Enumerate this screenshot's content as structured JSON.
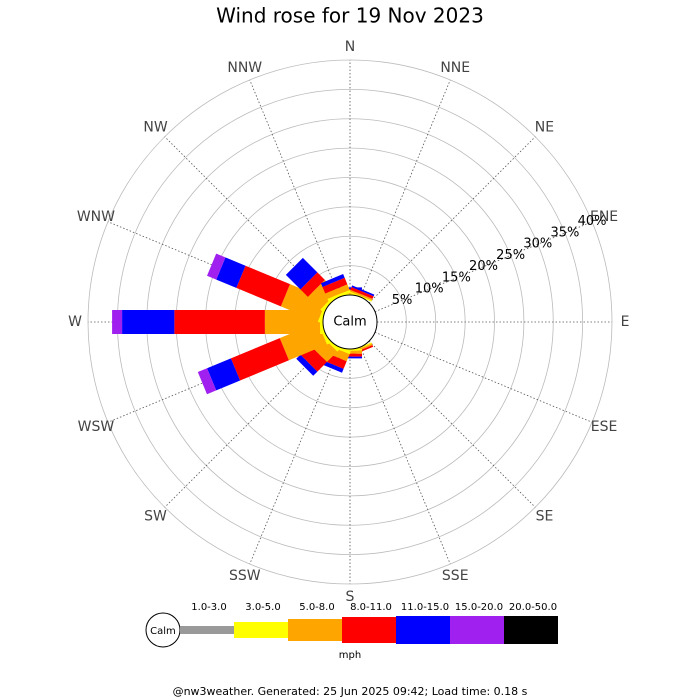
{
  "chart_data": {
    "type": "wind-rose",
    "title": "Wind rose for 19 Nov 2023",
    "directions": [
      "N",
      "NNE",
      "NE",
      "ENE",
      "E",
      "ESE",
      "SE",
      "SSE",
      "S",
      "SSW",
      "SW",
      "WSW",
      "W",
      "WNW",
      "NW",
      "NNW"
    ],
    "rlim": [
      0,
      40
    ],
    "rticks": [
      {
        "value": 5,
        "label": "5%"
      },
      {
        "value": 10,
        "label": "10%"
      },
      {
        "value": 15,
        "label": "15%"
      },
      {
        "value": 20,
        "label": "20%"
      },
      {
        "value": 25,
        "label": "25%"
      },
      {
        "value": 30,
        "label": "30%"
      },
      {
        "value": 35,
        "label": "35%"
      },
      {
        "value": 40,
        "label": "40%"
      }
    ],
    "calm_label": "Calm",
    "units": "mph",
    "series": [
      {
        "name": "1.0-3.0",
        "color": "#999999",
        "values": [
          0,
          0,
          0,
          0,
          0,
          0,
          0,
          0,
          0,
          0,
          0,
          0,
          0,
          0,
          0,
          0
        ]
      },
      {
        "name": "3.0-5.0",
        "color": "#ffff00",
        "values": [
          0.2,
          0.2,
          0,
          0,
          0,
          0,
          0,
          0.2,
          0.3,
          0.5,
          0.5,
          0.5,
          0.5,
          0.5,
          0.5,
          0.5
        ]
      },
      {
        "name": "5.0-8.0",
        "color": "#ffa500",
        "values": [
          0.3,
          0.3,
          0,
          0,
          0,
          0,
          0,
          0.3,
          0.5,
          1.3,
          2.5,
          7,
          9.4,
          6.8,
          3,
          1
        ]
      },
      {
        "name": "8.0-11.0",
        "color": "#ff0000",
        "values": [
          0.5,
          0.5,
          0,
          0,
          0,
          0,
          0,
          0.3,
          0.5,
          1.4,
          2.3,
          9,
          15.4,
          8.2,
          1.8,
          1.2
        ]
      },
      {
        "name": "11.0-15.0",
        "color": "#0000ff",
        "values": [
          0.3,
          0.3,
          0,
          0,
          0,
          0,
          0,
          0,
          0.3,
          0.7,
          1,
          4.4,
          8.9,
          3.7,
          3.5,
          0.7
        ]
      },
      {
        "name": "15.0-20.0",
        "color": "#a020f0",
        "values": [
          0,
          0,
          0,
          0,
          0,
          0,
          0,
          0,
          0,
          0,
          0,
          1.7,
          1.7,
          1.7,
          0,
          0
        ]
      },
      {
        "name": "20.0-50.0",
        "color": "#000000",
        "values": [
          0,
          0,
          0,
          0,
          0,
          0,
          0,
          0,
          0,
          0,
          0,
          0,
          0,
          0,
          0,
          0
        ]
      }
    ],
    "footer": "@nw3weather. Generated: 25 Jun 2025 09:42; Load time: 0.18 s"
  }
}
